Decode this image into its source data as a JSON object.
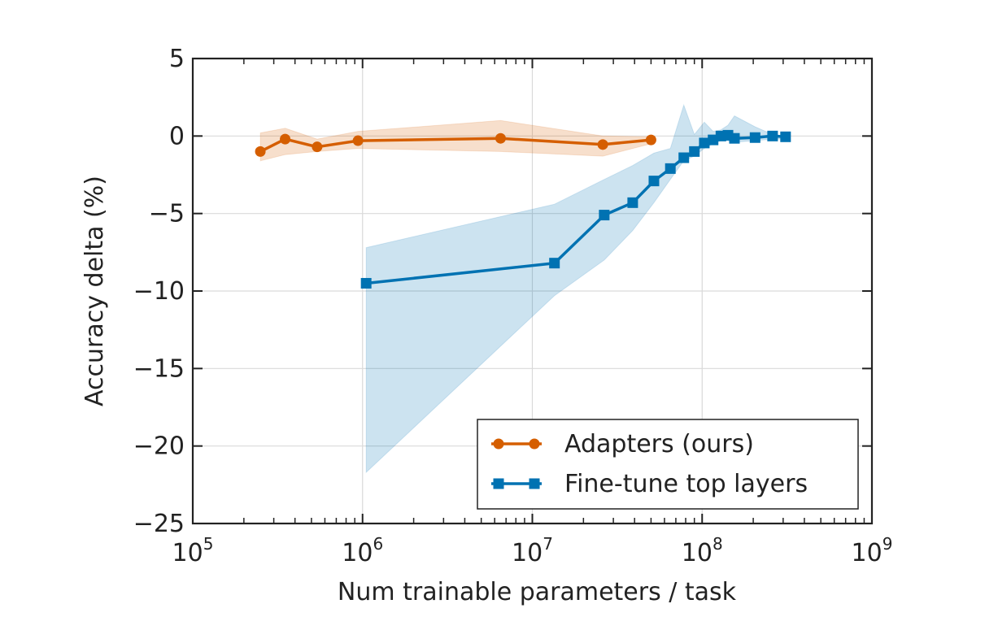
{
  "chart_data": {
    "type": "line",
    "xlabel": "Num trainable parameters / task",
    "ylabel": "Accuracy delta (%)",
    "xscale": "log",
    "xlim": [
      100000,
      1000000000
    ],
    "ylim": [
      -25,
      5
    ],
    "grid": true,
    "x_ticks": [
      {
        "value": 100000,
        "base": "10",
        "exp": "5"
      },
      {
        "value": 1000000,
        "base": "10",
        "exp": "6"
      },
      {
        "value": 10000000,
        "base": "10",
        "exp": "7"
      },
      {
        "value": 100000000,
        "base": "10",
        "exp": "8"
      },
      {
        "value": 1000000000,
        "base": "10",
        "exp": "9"
      }
    ],
    "y_ticks": [
      {
        "value": 5,
        "label": "5"
      },
      {
        "value": 0,
        "label": "0"
      },
      {
        "value": -5,
        "label": "−5"
      },
      {
        "value": -10,
        "label": "−10"
      },
      {
        "value": -15,
        "label": "−15"
      },
      {
        "value": -20,
        "label": "−20"
      },
      {
        "value": -25,
        "label": "−25"
      }
    ],
    "legend_position": "lower-right",
    "series": [
      {
        "name": "Adapters (ours)",
        "color": "#d55e00",
        "marker": "circle",
        "x": [
          250000,
          350000,
          540000,
          940000,
          6500000,
          26000000,
          50000000
        ],
        "y": [
          -1.0,
          -0.2,
          -0.7,
          -0.3,
          -0.15,
          -0.55,
          -0.25
        ],
        "band": {
          "x": [
            250000,
            350000,
            540000,
            940000,
            6500000,
            26000000,
            50000000
          ],
          "upper": [
            0.2,
            0.5,
            -0.2,
            0.3,
            1.0,
            0.0,
            -0.05
          ],
          "lower": [
            -1.6,
            -1.2,
            -1.0,
            -0.8,
            -1.0,
            -1.3,
            -0.5
          ]
        }
      },
      {
        "name": "Fine-tune top layers",
        "color": "#0072b2",
        "marker": "square",
        "x": [
          1050000,
          13500000,
          26500000,
          39000000,
          52000000,
          65000000,
          78000000,
          90000000,
          103000000,
          116000000,
          129000000,
          142000000,
          155000000,
          205000000,
          260000000,
          310000000
        ],
        "y": [
          -9.5,
          -8.2,
          -5.1,
          -4.3,
          -2.9,
          -2.1,
          -1.4,
          -1.0,
          -0.45,
          -0.25,
          0.0,
          0.05,
          -0.15,
          -0.1,
          0.0,
          -0.05
        ],
        "band": {
          "x": [
            1050000,
            13500000,
            26500000,
            39000000,
            52000000,
            65000000,
            78000000,
            90000000,
            103000000,
            116000000,
            129000000,
            142000000,
            155000000,
            205000000,
            260000000,
            310000000
          ],
          "upper": [
            -7.2,
            -4.4,
            -2.8,
            -1.9,
            -1.1,
            -0.8,
            2.0,
            0.1,
            0.9,
            0.3,
            0.4,
            0.7,
            1.3,
            0.6,
            0.1,
            0.0
          ],
          "lower": [
            -21.7,
            -10.3,
            -8.0,
            -6.1,
            -4.3,
            -2.8,
            -1.6,
            -1.3,
            -0.8,
            -0.5,
            -0.3,
            -0.3,
            -0.4,
            -0.3,
            -0.2,
            -0.2
          ]
        }
      }
    ]
  }
}
